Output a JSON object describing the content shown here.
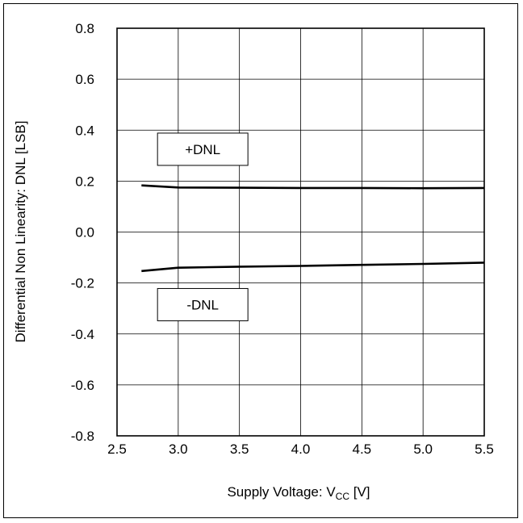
{
  "chart_data": {
    "type": "line",
    "xlabel": "Supply Voltage: V",
    "xlabel_sub": "CC",
    "xlabel_suffix": " [V]",
    "ylabel": "Differential Non Linearity: DNL [LSB]",
    "xlim": [
      2.5,
      5.5
    ],
    "ylim": [
      -0.8,
      0.8
    ],
    "x_ticks": [
      2.5,
      3.0,
      3.5,
      4.0,
      4.5,
      5.0,
      5.5
    ],
    "x_tick_labels": [
      "2.5",
      "3.0",
      "3.5",
      "4.0",
      "4.5",
      "5.0",
      "5.5"
    ],
    "y_ticks": [
      0.8,
      0.6,
      0.4,
      0.2,
      0.0,
      -0.2,
      -0.4,
      -0.6,
      -0.8
    ],
    "y_tick_labels": [
      "0.8",
      "0.6",
      "0.4",
      "0.2",
      "0.0",
      "-0.2",
      "-0.4",
      "-0.6",
      "-0.8"
    ],
    "grid": true,
    "series": [
      {
        "name": "+DNL",
        "color": "#000000",
        "x": [
          2.7,
          3.0,
          3.5,
          4.0,
          4.5,
          5.0,
          5.5
        ],
        "y": [
          0.183,
          0.175,
          0.174,
          0.173,
          0.173,
          0.172,
          0.173
        ]
      },
      {
        "name": "-DNL",
        "color": "#000000",
        "x": [
          2.7,
          3.0,
          3.5,
          4.0,
          4.5,
          5.0,
          5.5
        ],
        "y": [
          -0.153,
          -0.14,
          -0.136,
          -0.133,
          -0.129,
          -0.125,
          -0.12
        ]
      }
    ],
    "annotations": [
      {
        "text": "+DNL",
        "x": 3.2,
        "y": 0.325
      },
      {
        "text": "-DNL",
        "x": 3.2,
        "y": -0.285
      }
    ]
  }
}
